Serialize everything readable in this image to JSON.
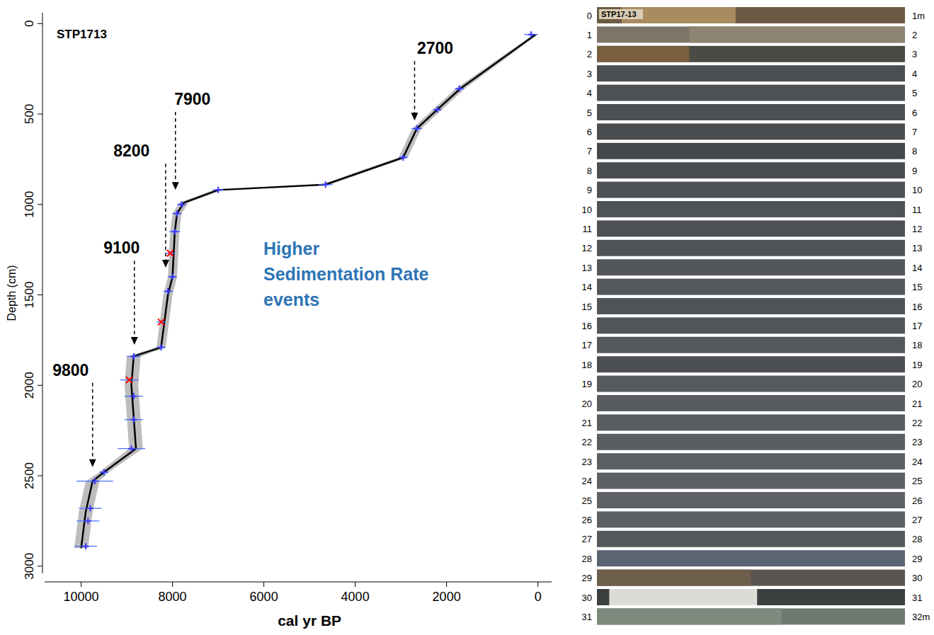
{
  "chart_data": {
    "type": "line",
    "title": "STP1713",
    "x_label": "cal yr BP",
    "y_label": "Depth (cm)",
    "xlim": [
      10800,
      -300
    ],
    "xticks": [
      10000,
      8000,
      6000,
      4000,
      2000,
      0
    ],
    "ylim": [
      3040,
      -60
    ],
    "yticks": [
      0,
      500,
      1000,
      1500,
      2000,
      2500,
      3000
    ],
    "grid": false,
    "series": [
      {
        "type": "line",
        "color": "#000000",
        "x": [
          50,
          1700,
          2200,
          2650,
          2950,
          4650,
          7000,
          7750,
          7900,
          7950,
          8000,
          8100,
          8250,
          8850,
          8900,
          8800,
          9500,
          9750,
          9900,
          10000
        ],
        "values": [
          60,
          360,
          475,
          580,
          740,
          890,
          920,
          990,
          1050,
          1150,
          1400,
          1500,
          1790,
          1840,
          2000,
          2350,
          2480,
          2530,
          2700,
          2900
        ],
        "x_min": [
          0,
          1600,
          2100,
          2550,
          2850,
          4550,
          6900,
          7650,
          7800,
          7850,
          7900,
          8000,
          8150,
          8700,
          8750,
          8650,
          9400,
          9600,
          9750,
          9850
        ],
        "x_max": [
          100,
          1800,
          2300,
          2750,
          3050,
          4750,
          7100,
          7850,
          8000,
          8050,
          8100,
          8200,
          8350,
          9000,
          9050,
          8950,
          9600,
          9900,
          10050,
          10150
        ]
      },
      {
        "type": "scatter",
        "color": "#3a3aff",
        "marker": "plus",
        "x": [
          150,
          1720,
          2200,
          2650,
          2950,
          4650,
          7000,
          7800,
          7900,
          7950,
          8000,
          8100,
          8250,
          8850,
          8850,
          8850,
          8900,
          9500,
          9700,
          9800,
          9850,
          9900
        ],
        "values": [
          60,
          360,
          475,
          580,
          740,
          890,
          920,
          1000,
          1050,
          1150,
          1400,
          1480,
          1790,
          1840,
          2060,
          2190,
          2350,
          2480,
          2530,
          2680,
          2750,
          2890
        ],
        "x_err": [
          150,
          100,
          100,
          120,
          100,
          150,
          120,
          100,
          100,
          120,
          100,
          100,
          100,
          150,
          200,
          200,
          300,
          100,
          400,
          250,
          250,
          250
        ]
      },
      {
        "type": "scatter",
        "color": "#ff0000",
        "marker": "x",
        "x": [
          8050,
          8250,
          8950
        ],
        "values": [
          1270,
          1650,
          1970
        ],
        "x_err": [
          100,
          100,
          200
        ]
      }
    ],
    "annotations": [
      {
        "text": "2700",
        "x": 2700,
        "y": 536,
        "text_x": 2250,
        "text_y": 137
      },
      {
        "text": "7900",
        "x": 7936,
        "y": 920,
        "text_x": 7564,
        "text_y": 418
      },
      {
        "text": "8200",
        "x": 8150,
        "y": 1349,
        "text_x": 8897,
        "text_y": 704
      },
      {
        "text": "9100",
        "x": 8835,
        "y": 1776,
        "text_x": 9114,
        "text_y": 1240
      },
      {
        "text": "9800",
        "x": 9750,
        "y": 2452,
        "text_x": 10230,
        "text_y": 1916
      }
    ],
    "text_annotation": {
      "lines": [
        "Higher",
        "Sedimentation Rate",
        "events"
      ],
      "color": "#2e75b6"
    }
  },
  "core_panel": {
    "label": "STP17-13",
    "left_labels": [
      "0",
      "1",
      "2",
      "3",
      "4",
      "5",
      "6",
      "7",
      "8",
      "9",
      "10",
      "11",
      "12",
      "13",
      "14",
      "15",
      "16",
      "17",
      "18",
      "19",
      "20",
      "21",
      "22",
      "23",
      "24",
      "25",
      "26",
      "27",
      "28",
      "29",
      "30",
      "31"
    ],
    "right_labels": [
      "1m",
      "2",
      "3",
      "4",
      "5",
      "6",
      "7",
      "8",
      "9",
      "10",
      "11",
      "12",
      "13",
      "14",
      "15",
      "16",
      "17",
      "18",
      "19",
      "20",
      "21",
      "22",
      "23",
      "24",
      "25",
      "26",
      "27",
      "28",
      "29",
      "30",
      "31",
      "32m"
    ]
  }
}
